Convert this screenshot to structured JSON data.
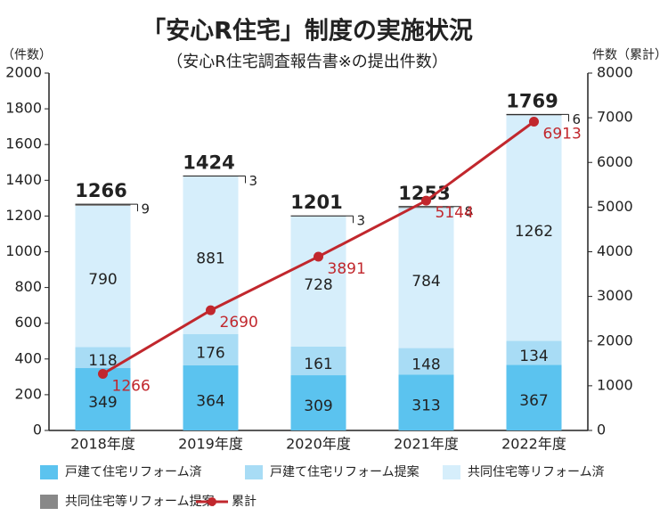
{
  "chart_data": {
    "type": "bar",
    "title": "「安心R住宅」制度の実施状況",
    "subtitle": "（安心R住宅調査報告書※の提出件数）",
    "y_label": "（件数）",
    "y2_label": "件数（累計）",
    "categories": [
      "2018年度",
      "2019年度",
      "2020年度",
      "2021年度",
      "2022年度"
    ],
    "totals": [
      1266,
      1424,
      1201,
      1253,
      1769
    ],
    "series": [
      {
        "name": "戸建て住宅リフォーム済",
        "color": "#5bc3ef",
        "values": [
          349,
          364,
          309,
          313,
          367
        ]
      },
      {
        "name": "戸建て住宅リフォーム提案",
        "color": "#a8dcf5",
        "values": [
          118,
          176,
          161,
          148,
          134
        ]
      },
      {
        "name": "共同住宅等リフォーム済",
        "color": "#d6eefb",
        "values": [
          790,
          881,
          728,
          784,
          1262
        ]
      },
      {
        "name": "共同住宅等リフォーム提案",
        "color": "#888888",
        "values": [
          9,
          3,
          3,
          8,
          6
        ]
      },
      {
        "name": "累計",
        "color": "#c1272d",
        "type": "line",
        "axis": "y2",
        "values": [
          1266,
          2690,
          3891,
          5144,
          6913
        ]
      }
    ],
    "ylim": [
      0,
      2000
    ],
    "yticks": [
      0,
      200,
      400,
      600,
      800,
      1000,
      1200,
      1400,
      1600,
      1800,
      2000
    ],
    "y2lim": [
      0,
      8000
    ],
    "y2ticks": [
      0,
      1000,
      2000,
      3000,
      4000,
      5000,
      6000,
      7000,
      8000
    ],
    "grid": false
  }
}
